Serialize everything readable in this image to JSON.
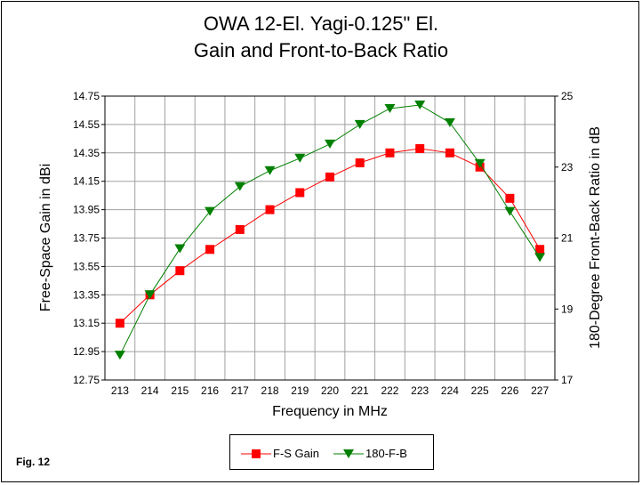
{
  "chart_data": {
    "type": "line",
    "title": "OWA 12-El. Yagi-0.125\" El.",
    "subtitle": "Gain and Front-to-Back Ratio",
    "xlabel": "Frequency in MHz",
    "ylabel": "Free-Space Gain in dBi",
    "y2label": "180-Degree Front-Back Ratio in dB",
    "categories": [
      "213",
      "214",
      "215",
      "216",
      "217",
      "218",
      "219",
      "220",
      "221",
      "222",
      "223",
      "224",
      "225",
      "226",
      "227"
    ],
    "ylim": [
      12.75,
      14.75
    ],
    "y_ticks": [
      "12.75",
      "12.95",
      "13.15",
      "13.35",
      "13.55",
      "13.75",
      "13.95",
      "14.15",
      "14.35",
      "14.55",
      "14.75"
    ],
    "y2lim": [
      17,
      25
    ],
    "y2_ticks": [
      "17",
      "19",
      "21",
      "23",
      "25"
    ],
    "grid": true,
    "legend_position": "bottom-center",
    "series": [
      {
        "name": "F-S Gain",
        "axis": "left",
        "color": "#ff0000",
        "marker": "square",
        "values": [
          13.15,
          13.35,
          13.52,
          13.67,
          13.81,
          13.95,
          14.07,
          14.18,
          14.28,
          14.35,
          14.38,
          14.35,
          14.25,
          14.03,
          13.67
        ]
      },
      {
        "name": "180-F-B",
        "axis": "right",
        "color": "#008000",
        "marker": "triangle-down",
        "values": [
          17.7,
          19.4,
          20.7,
          21.75,
          22.45,
          22.9,
          23.25,
          23.65,
          24.2,
          24.65,
          24.75,
          24.25,
          23.1,
          21.75,
          20.45
        ]
      }
    ]
  },
  "figure_label": "Fig. 12"
}
